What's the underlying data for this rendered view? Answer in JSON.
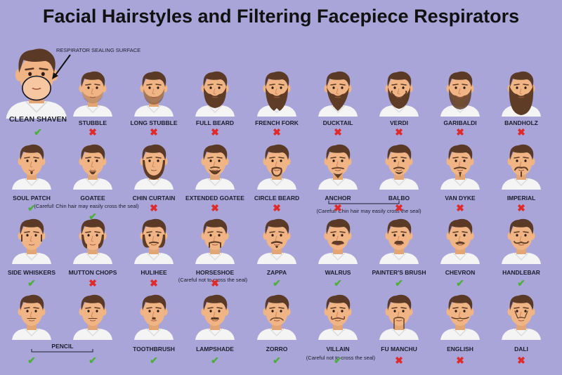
{
  "title": "Facial Hairstyles and Filtering Facepiece Respirators",
  "colors": {
    "background": "#aaa5d8",
    "skin": "#f1b585",
    "hair": "#5a3a26",
    "beard": "#5e3c25",
    "shirt": "#f4f4f4",
    "check": "#4caf3a",
    "cross": "#e02a2a"
  },
  "icons": {
    "pass": "check-icon",
    "fail": "cross-icon"
  },
  "featured": {
    "label": "CLEAN SHAVEN",
    "callout": "RESPIRATOR SEALING SURFACE",
    "ok": true
  },
  "rows": [
    [
      {
        "label": "STUBBLE",
        "ok": false
      },
      {
        "label": "LONG STUBBLE",
        "ok": false
      },
      {
        "label": "FULL BEARD",
        "ok": false
      },
      {
        "label": "FRENCH FORK",
        "ok": false
      },
      {
        "label": "DUCKTAIL",
        "ok": false
      },
      {
        "label": "VERDI",
        "ok": false
      },
      {
        "label": "GARIBALDI",
        "ok": false
      },
      {
        "label": "BANDHOLZ",
        "ok": false
      }
    ],
    [
      {
        "label": "SOUL PATCH",
        "ok": true
      },
      {
        "label": "GOATEE",
        "ok": true
      },
      {
        "label": "CHIN CURTAIN",
        "ok": false
      },
      {
        "label": "EXTENDED GOATEE",
        "ok": false
      },
      {
        "label": "CIRCLE BEARD",
        "ok": false
      },
      {
        "label": "ANCHOR",
        "ok": false
      },
      {
        "label": "BALBO",
        "ok": false
      },
      {
        "label": "VAN DYKE",
        "ok": false
      },
      {
        "label": "IMPERIAL",
        "ok": false
      }
    ],
    [
      {
        "label": "SIDE WHISKERS",
        "ok": true
      },
      {
        "label": "MUTTON CHOPS",
        "ok": false
      },
      {
        "label": "HULIHEE",
        "ok": false
      },
      {
        "label": "HORSESHOE",
        "ok": false
      },
      {
        "label": "ZAPPA",
        "ok": true
      },
      {
        "label": "WALRUS",
        "ok": true
      },
      {
        "label": "PAINTER'S BRUSH",
        "ok": true
      },
      {
        "label": "CHEVRON",
        "ok": true
      },
      {
        "label": "HANDLEBAR",
        "ok": true
      }
    ],
    [
      {
        "label": "",
        "ok": true
      },
      {
        "label": "",
        "ok": true
      },
      {
        "label": "TOOTHBRUSH",
        "ok": true
      },
      {
        "label": "LAMPSHADE",
        "ok": true
      },
      {
        "label": "ZORRO",
        "ok": true
      },
      {
        "label": "VILLAIN",
        "ok": true
      },
      {
        "label": "FU MANCHU",
        "ok": false
      },
      {
        "label": "ENGLISH",
        "ok": false
      },
      {
        "label": "DALI",
        "ok": false
      }
    ]
  ],
  "notes": {
    "goatee": "(Careful! Chin hair may easily cross the seal)",
    "anchor_balbo": "(Careful! Chin hair may easily cross the seal)",
    "horseshoe": "(Careful not to cross the seal)",
    "villain": "(Careful not to cross the seal)",
    "pencil": "PENCIL"
  }
}
